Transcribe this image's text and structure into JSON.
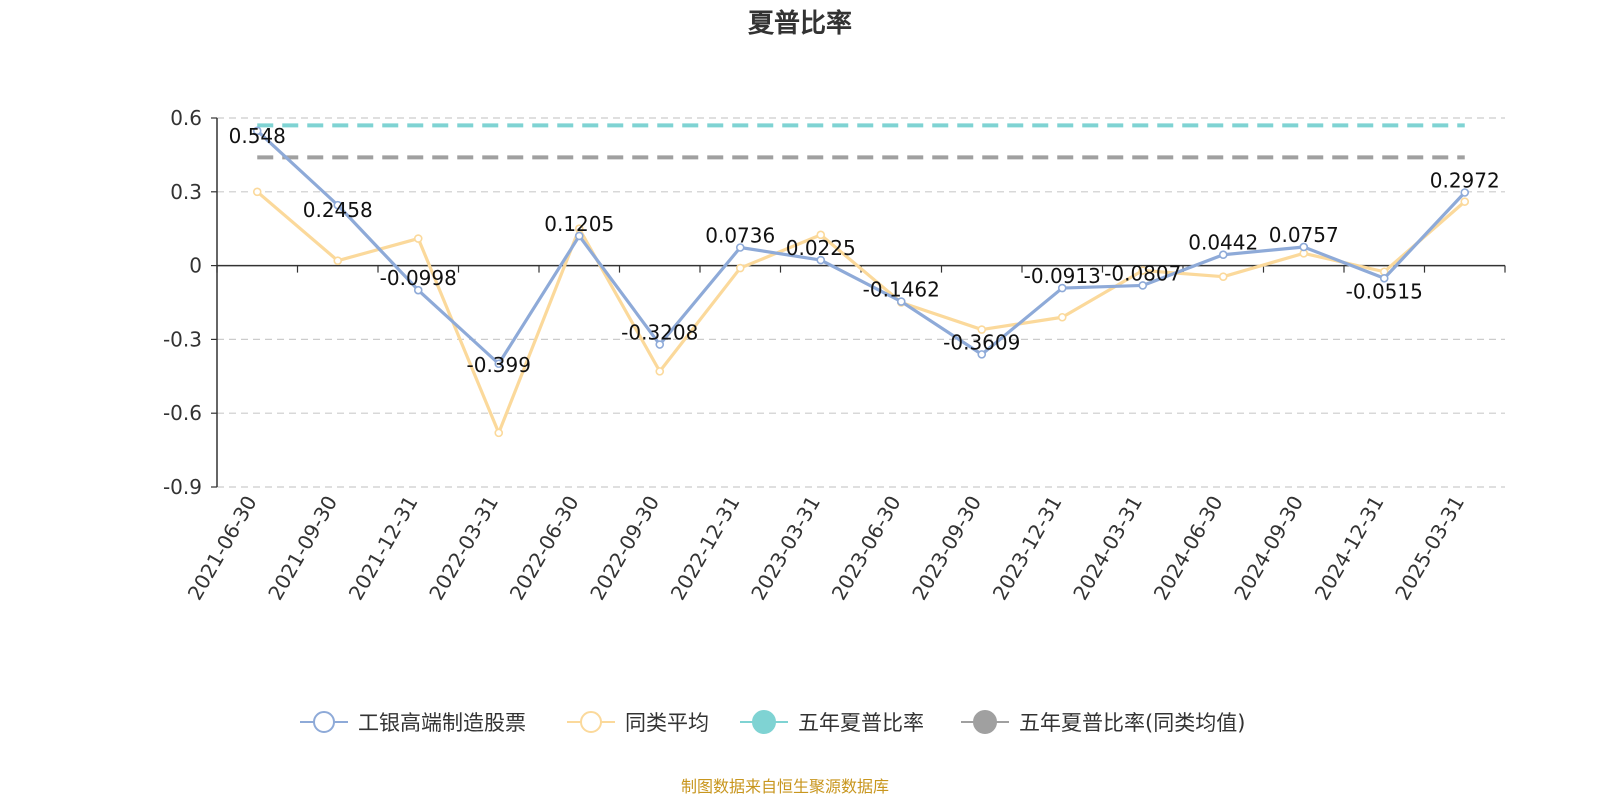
{
  "chart_data": {
    "type": "line",
    "title": "夏普比率",
    "x": [
      "2021-06-30",
      "2021-09-30",
      "2021-12-31",
      "2022-03-31",
      "2022-06-30",
      "2022-09-30",
      "2022-12-31",
      "2023-03-31",
      "2023-06-30",
      "2023-09-30",
      "2023-12-31",
      "2024-03-31",
      "2024-06-30",
      "2024-09-30",
      "2024-12-31",
      "2025-03-31"
    ],
    "ylim": [
      -0.9,
      0.6
    ],
    "yticks": [
      0.6,
      0.3,
      0,
      -0.3,
      -0.6,
      -0.9
    ],
    "ytick_labels": [
      "0.6",
      "0.3",
      "0",
      "-0.3",
      "-0.6",
      "-0.9"
    ],
    "grid": "horizontal-dashed",
    "legend_position": "bottom",
    "series": [
      {
        "name": "工银高端制造股票",
        "color": "#8eaad8",
        "marker": "hollow-circle",
        "values": [
          0.548,
          0.2458,
          -0.0998,
          -0.399,
          0.1205,
          -0.3208,
          0.0736,
          0.0225,
          -0.1462,
          -0.3609,
          -0.0913,
          -0.0807,
          0.0442,
          0.0757,
          -0.0515,
          0.2972
        ],
        "labels": [
          "0.548",
          "0.2458",
          "-0.0998",
          "-0.399",
          "0.1205",
          "-0.3208",
          "0.0736",
          "0.0225",
          "-0.1462",
          "-0.3609",
          "-0.0913",
          "-0.0807",
          "0.0442",
          "0.0757",
          "-0.0515",
          "0.2972"
        ]
      },
      {
        "name": "同类平均",
        "color": "#fbd99b",
        "marker": "hollow-circle",
        "values": [
          0.3,
          0.02,
          0.11,
          -0.68,
          0.15,
          -0.43,
          -0.01,
          0.125,
          -0.15,
          -0.26,
          -0.21,
          -0.02,
          -0.045,
          0.05,
          -0.025,
          0.26
        ]
      },
      {
        "name": "五年夏普比率",
        "color": "#7fd3d3",
        "marker": "filled-circle",
        "style": "dashed",
        "value": 0.57
      },
      {
        "name": "五年夏普比率(同类均值)",
        "color": "#a0a0a0",
        "marker": "filled-circle",
        "style": "dashed",
        "value": 0.44
      }
    ]
  },
  "footer": {
    "source": "制图数据来自恒生聚源数据库"
  }
}
